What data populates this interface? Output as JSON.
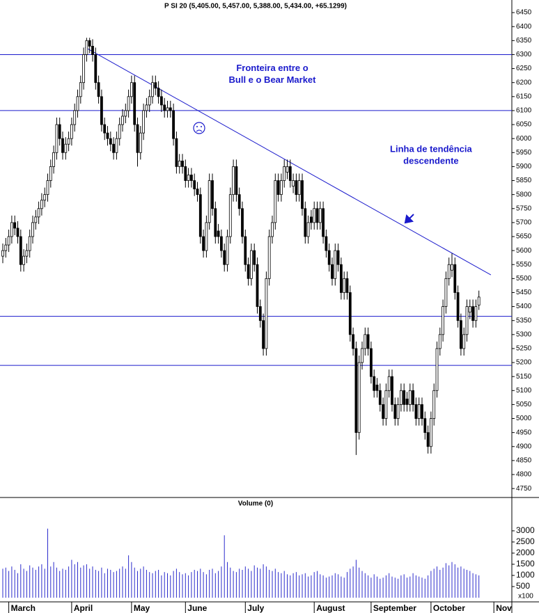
{
  "chart_data": {
    "type": "candlestick",
    "title": "P SI 20 (5,405.00, 5,457.00, 5,388.00, 5,434.00, +65.1299)",
    "color": "#000000",
    "line_color": "#1a1acc",
    "open": [
      5580,
      5600,
      5620,
      5650,
      5700,
      5680,
      5650,
      5550,
      5580,
      5600,
      5650,
      5700,
      5720,
      5750,
      5780,
      5800,
      5850,
      5900,
      5950,
      6050,
      6000,
      5950,
      5980,
      6000,
      6050,
      6100,
      6150,
      6200,
      6300,
      6350,
      6330,
      6300,
      6200,
      6150,
      6050,
      6020,
      6000,
      5980,
      5950,
      6000,
      6050,
      6080,
      6100,
      6150,
      6200,
      6050,
      5950,
      6020,
      6100,
      6120,
      6150,
      6200,
      6180,
      6150,
      6120,
      6100,
      6110,
      6100,
      6000,
      5900,
      5920,
      5900,
      5850,
      5870,
      5850,
      5820,
      5800,
      5650,
      5600,
      5700,
      5850,
      5750,
      5670,
      5650,
      5600,
      5550,
      5650,
      5800,
      5900,
      5800,
      5750,
      5650,
      5550,
      5500,
      5600,
      5550,
      5400,
      5350,
      5250,
      5500,
      5650,
      5700,
      5850,
      5800,
      5850,
      5880,
      5900,
      5830,
      5850,
      5800,
      5850,
      5750,
      5650,
      5720,
      5700,
      5750,
      5700,
      5750,
      5650,
      5600,
      5550,
      5500,
      5600,
      5550,
      5450,
      5500,
      5450,
      5300,
      5250,
      4950,
      5200,
      5250,
      5300,
      5250,
      5150,
      5120,
      5100,
      5050,
      5000,
      5100,
      5150,
      5050,
      5000,
      5050,
      5100,
      5070,
      5050,
      5100,
      5050,
      5000,
      5050,
      5000,
      4950,
      4900,
      5000,
      5100,
      5250,
      5300,
      5400,
      5500,
      5530,
      5550,
      5450,
      5350,
      5250,
      5300,
      5380,
      5400,
      5350,
      5405
    ],
    "high": [
      5625,
      5645,
      5675,
      5725,
      5725,
      5705,
      5675,
      5605,
      5625,
      5675,
      5725,
      5745,
      5775,
      5805,
      5825,
      5875,
      5925,
      5975,
      6075,
      6075,
      6025,
      6005,
      6025,
      6075,
      6125,
      6175,
      6225,
      6325,
      6360,
      6360,
      6355,
      6325,
      6225,
      6175,
      6075,
      6045,
      6025,
      6005,
      6025,
      6075,
      6105,
      6125,
      6175,
      6225,
      6225,
      6075,
      6045,
      6125,
      6145,
      6175,
      6225,
      6225,
      6205,
      6175,
      6145,
      6135,
      6135,
      6125,
      6025,
      5945,
      5945,
      5925,
      5895,
      5895,
      5875,
      5845,
      5825,
      5675,
      5725,
      5875,
      5875,
      5775,
      5695,
      5675,
      5625,
      5675,
      5825,
      5925,
      5925,
      5825,
      5775,
      5675,
      5575,
      5625,
      5625,
      5575,
      5425,
      5375,
      5525,
      5675,
      5725,
      5875,
      5875,
      5875,
      5925,
      5925,
      5925,
      5875,
      5875,
      5875,
      5875,
      5775,
      5725,
      5745,
      5775,
      5775,
      5775,
      5775,
      5675,
      5625,
      5575,
      5625,
      5625,
      5575,
      5525,
      5525,
      5475,
      5325,
      5275,
      5225,
      5275,
      5325,
      5325,
      5275,
      5175,
      5145,
      5125,
      5075,
      5125,
      5175,
      5175,
      5075,
      5075,
      5125,
      5125,
      5095,
      5125,
      5125,
      5075,
      5075,
      5075,
      5025,
      4975,
      5025,
      5125,
      5275,
      5325,
      5425,
      5525,
      5575,
      5590,
      5575,
      5475,
      5375,
      5325,
      5425,
      5425,
      5425,
      5425,
      5457
    ],
    "low": [
      5555,
      5575,
      5595,
      5625,
      5655,
      5625,
      5525,
      5525,
      5555,
      5575,
      5625,
      5675,
      5695,
      5725,
      5755,
      5775,
      5825,
      5875,
      5925,
      5975,
      5925,
      5925,
      5955,
      5975,
      6025,
      6075,
      6125,
      6175,
      6275,
      6305,
      6275,
      6175,
      6125,
      6025,
      5995,
      5975,
      5955,
      5925,
      5925,
      5975,
      6025,
      6055,
      6075,
      6125,
      6025,
      5900,
      5925,
      5995,
      6075,
      6095,
      6125,
      6155,
      6125,
      6095,
      6075,
      6075,
      6075,
      5975,
      5875,
      5875,
      5875,
      5825,
      5825,
      5825,
      5795,
      5775,
      5625,
      5575,
      5575,
      5675,
      5725,
      5625,
      5625,
      5575,
      5525,
      5525,
      5625,
      5775,
      5775,
      5725,
      5625,
      5525,
      5475,
      5475,
      5525,
      5375,
      5325,
      5225,
      5225,
      5475,
      5625,
      5675,
      5775,
      5775,
      5825,
      5855,
      5825,
      5805,
      5775,
      5775,
      5725,
      5625,
      5625,
      5675,
      5675,
      5675,
      5675,
      5625,
      5575,
      5525,
      5475,
      5475,
      5525,
      5425,
      5425,
      5425,
      5275,
      5225,
      4870,
      4925,
      5175,
      5225,
      5225,
      5125,
      5075,
      5075,
      5025,
      4975,
      4975,
      5075,
      5025,
      4975,
      4975,
      5025,
      5025,
      5025,
      5025,
      5025,
      4975,
      4975,
      4975,
      4925,
      4875,
      4875,
      4975,
      5075,
      5225,
      5275,
      5375,
      5475,
      5505,
      5425,
      5325,
      5225,
      5225,
      5275,
      5355,
      5325,
      5325,
      5388
    ],
    "close": [
      5600,
      5620,
      5650,
      5700,
      5680,
      5650,
      5550,
      5580,
      5600,
      5650,
      5700,
      5720,
      5750,
      5780,
      5800,
      5850,
      5900,
      5950,
      6050,
      6000,
      5950,
      5980,
      6000,
      6050,
      6100,
      6150,
      6200,
      6300,
      6350,
      6330,
      6300,
      6200,
      6150,
      6050,
      6020,
      6000,
      5980,
      5950,
      6000,
      6050,
      6080,
      6100,
      6150,
      6200,
      6050,
      5950,
      6020,
      6100,
      6120,
      6150,
      6200,
      6180,
      6150,
      6120,
      6100,
      6110,
      6100,
      6000,
      5900,
      5920,
      5900,
      5850,
      5870,
      5850,
      5820,
      5800,
      5650,
      5600,
      5700,
      5850,
      5750,
      5650,
      5650,
      5600,
      5550,
      5650,
      5800,
      5900,
      5800,
      5750,
      5650,
      5550,
      5500,
      5600,
      5550,
      5400,
      5350,
      5250,
      5500,
      5650,
      5700,
      5850,
      5800,
      5850,
      5900,
      5900,
      5850,
      5850,
      5800,
      5850,
      5750,
      5650,
      5700,
      5700,
      5750,
      5700,
      5750,
      5650,
      5600,
      5550,
      5500,
      5600,
      5550,
      5450,
      5500,
      5450,
      5300,
      5250,
      4950,
      5200,
      5250,
      5300,
      5250,
      5150,
      5100,
      5100,
      5050,
      5000,
      5100,
      5150,
      5050,
      5000,
      5050,
      5100,
      5050,
      5050,
      5100,
      5050,
      5000,
      5050,
      5000,
      4950,
      4900,
      5000,
      5100,
      5250,
      5300,
      5400,
      5500,
      5550,
      5550,
      5450,
      5350,
      5250,
      5300,
      5400,
      5400,
      5350,
      5400,
      5434
    ],
    "xticks": [
      {
        "value": 2,
        "label": "March"
      },
      {
        "value": 23,
        "label": "April"
      },
      {
        "value": 43,
        "label": "May"
      },
      {
        "value": 61,
        "label": "June"
      },
      {
        "value": 81,
        "label": "July"
      },
      {
        "value": 104,
        "label": "August"
      },
      {
        "value": 123,
        "label": "September"
      },
      {
        "value": 143,
        "label": "October"
      },
      {
        "value": 164,
        "label": "Nov"
      }
    ],
    "xlim": [
      -1,
      170
    ],
    "ylim": [
      4718,
      6495
    ],
    "yticks": [
      4750,
      4800,
      4850,
      4900,
      4950,
      5000,
      5050,
      5100,
      5150,
      5200,
      5250,
      5300,
      5350,
      5400,
      5450,
      5500,
      5550,
      5600,
      5650,
      5700,
      5750,
      5800,
      5850,
      5900,
      5950,
      6000,
      6050,
      6100,
      6150,
      6200,
      6250,
      6300,
      6350,
      6400,
      6450
    ],
    "hlines": [
      6300,
      6100,
      5365,
      5190
    ],
    "trendline": {
      "from": {
        "x": 27.5,
        "value": 6326
      },
      "to": {
        "x": 163,
        "value": 5513
      }
    },
    "annotations": [
      {
        "lines": [
          "Fronteira entre o",
          "Bull e o Bear Market"
        ],
        "x": 90,
        "value": 6250
      },
      {
        "lines": [
          "Linha de tendência",
          "descendente"
        ],
        "x": 143,
        "value": 5960
      }
    ],
    "volume": {
      "type": "bar",
      "title": "Volume (0)",
      "unit_label": "x100",
      "color": "#2b2bcc",
      "values": [
        1300,
        1350,
        1200,
        1400,
        1250,
        1100,
        1500,
        1300,
        1200,
        1450,
        1350,
        1250,
        1400,
        1500,
        1300,
        3100,
        1400,
        1600,
        1350,
        1200,
        1300,
        1250,
        1400,
        1700,
        1500,
        1600,
        1350,
        1450,
        1500,
        1300,
        1400,
        1250,
        1200,
        1350,
        1100,
        1300,
        1250,
        1150,
        1200,
        1300,
        1400,
        1300,
        1900,
        1600,
        1350,
        1200,
        1300,
        1400,
        1250,
        1150,
        1100,
        1200,
        1250,
        1000,
        1150,
        1100,
        1000,
        1200,
        1300,
        1150,
        1050,
        1100,
        1000,
        1150,
        1250,
        1200,
        1300,
        1150,
        1050,
        1250,
        1300,
        1100,
        1200,
        1400,
        2800,
        1600,
        1350,
        1200,
        1150,
        1300,
        1250,
        1400,
        1300,
        1200,
        1450,
        1350,
        1300,
        1500,
        1400,
        1250,
        1200,
        1300,
        1150,
        1100,
        1200,
        1050,
        1000,
        1100,
        1150,
        1000,
        1050,
        1100,
        950,
        1000,
        1150,
        1200,
        1050,
        1000,
        900,
        950,
        1000,
        1100,
        1050,
        950,
        900,
        1150,
        1300,
        1400,
        1700,
        1350,
        1200,
        1100,
        1000,
        900,
        1050,
        950,
        850,
        900,
        1000,
        1100,
        950,
        900,
        850,
        1000,
        1050,
        900,
        950,
        1100,
        1000,
        950,
        900,
        850,
        1000,
        1200,
        1300,
        1400,
        1250,
        1350,
        1550,
        1450,
        1600,
        1500,
        1350,
        1400,
        1300,
        1250,
        1200,
        1100,
        1050,
        1000
      ],
      "ylim": [
        0,
        4340
      ],
      "yticks": [
        500,
        1000,
        1500,
        2000,
        2500,
        3000
      ]
    }
  }
}
